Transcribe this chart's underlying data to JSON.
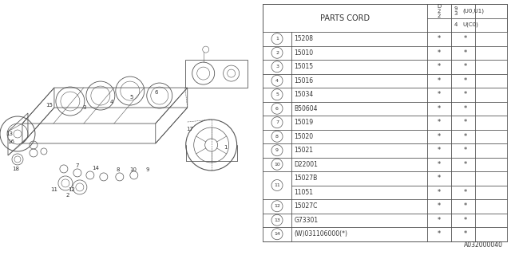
{
  "parts_cord_header": "PARTS CORD",
  "col_d22_label": "D\n2\n2",
  "col_934_label": "9\n3\n4",
  "col_u01_label": "(U0,U1)",
  "col_u_label": "U(C0)",
  "row_data": [
    {
      "num": "1",
      "part": "15208",
      "c1": "*",
      "c2": "*",
      "double": false
    },
    {
      "num": "2",
      "part": "15010",
      "c1": "*",
      "c2": "*",
      "double": false
    },
    {
      "num": "3",
      "part": "15015",
      "c1": "*",
      "c2": "*",
      "double": false
    },
    {
      "num": "4",
      "part": "15016",
      "c1": "*",
      "c2": "*",
      "double": false
    },
    {
      "num": "5",
      "part": "15034",
      "c1": "*",
      "c2": "*",
      "double": false
    },
    {
      "num": "6",
      "part": "B50604",
      "c1": "*",
      "c2": "*",
      "double": false
    },
    {
      "num": "7",
      "part": "15019",
      "c1": "*",
      "c2": "*",
      "double": false
    },
    {
      "num": "8",
      "part": "15020",
      "c1": "*",
      "c2": "*",
      "double": false
    },
    {
      "num": "9",
      "part": "15021",
      "c1": "*",
      "c2": "*",
      "double": false
    },
    {
      "num": "10",
      "part": "D22001",
      "c1": "*",
      "c2": "*",
      "double": false
    },
    {
      "num": "11",
      "part_a": "15027B",
      "c1_a": "*",
      "c2_a": "",
      "part_b": "11051",
      "c1_b": "*",
      "c2_b": "*",
      "double": true
    },
    {
      "num": "12",
      "part": "15027C",
      "c1": "*",
      "c2": "*",
      "double": false
    },
    {
      "num": "13",
      "part": "G73301",
      "c1": "*",
      "c2": "*",
      "double": false
    },
    {
      "num": "14",
      "part": "(W)031106000(*)",
      "c1": "*",
      "c2": "*",
      "double": false
    }
  ],
  "diagram_ref": "A032000040",
  "bg_color": "#ffffff",
  "line_color": "#4a4a4a"
}
